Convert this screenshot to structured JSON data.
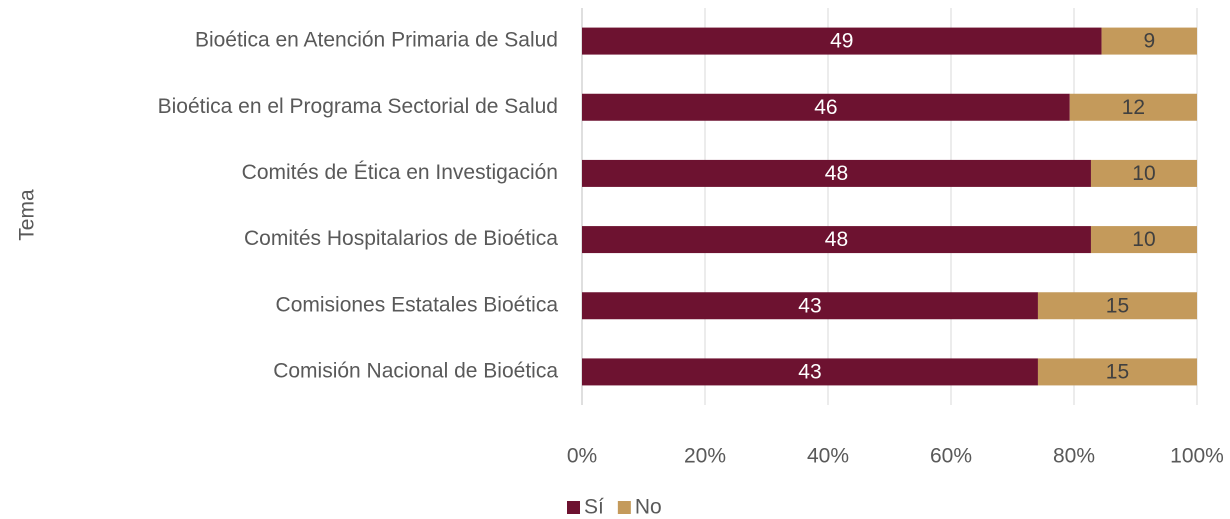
{
  "chart_data": {
    "type": "bar",
    "orientation": "horizontal",
    "stacking": "percent",
    "y_axis_label": "Tema",
    "categories": [
      "Bioética en Atención Primaria de Salud",
      "Bioética en el Programa Sectorial de Salud",
      "Comités de Ética en Investigación",
      "Comités Hospitalarios de Bioética",
      "Comisiones Estatales Bioética",
      "Comisión Nacional de Bioética"
    ],
    "series": [
      {
        "name": "Sí",
        "color": "#6d1230",
        "values": [
          49,
          46,
          48,
          48,
          43,
          43
        ]
      },
      {
        "name": "No",
        "color": "#c49a5b",
        "values": [
          9,
          12,
          10,
          10,
          15,
          15
        ]
      }
    ],
    "xlim": [
      0,
      100
    ],
    "xticks": [
      {
        "value": 0,
        "label": "0%"
      },
      {
        "value": 20,
        "label": "20%"
      },
      {
        "value": 40,
        "label": "40%"
      },
      {
        "value": 60,
        "label": "60%"
      },
      {
        "value": 80,
        "label": "80%"
      },
      {
        "value": 100,
        "label": "100%"
      }
    ],
    "grid": true,
    "legend": "bottom"
  }
}
